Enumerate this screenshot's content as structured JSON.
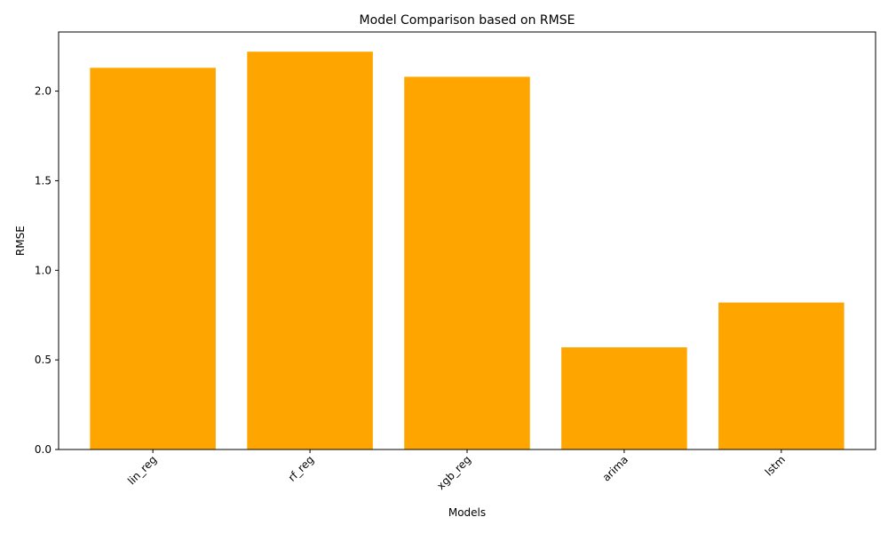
{
  "chart_data": {
    "type": "bar",
    "title": "Model Comparison based on RMSE",
    "xlabel": "Models",
    "ylabel": "RMSE",
    "categories": [
      "lin_reg",
      "rf_reg",
      "xgb_reg",
      "arima",
      "lstm"
    ],
    "values": [
      2.13,
      2.22,
      2.08,
      0.57,
      0.82
    ],
    "ylim": [
      0,
      2.33
    ],
    "yticks": [
      0.0,
      0.5,
      1.0,
      1.5,
      2.0
    ],
    "ytick_labels": [
      "0.0",
      "0.5",
      "1.0",
      "1.5",
      "2.0"
    ],
    "xtick_rotation": 45,
    "grid": false,
    "bar_color": "#ffa500"
  }
}
